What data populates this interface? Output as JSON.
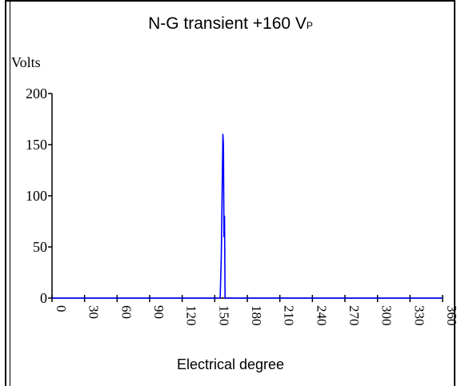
{
  "chart_data": {
    "type": "line",
    "title": "N-G transient +160 V",
    "title_subscript": "P",
    "xlabel": "Electrical degree",
    "ylabel": "Volts",
    "xlim": [
      0,
      360
    ],
    "ylim": [
      0,
      200
    ],
    "xticks": [
      "0",
      "30",
      "60",
      "90",
      "120",
      "150",
      "180",
      "210",
      "240",
      "270",
      "300",
      "330",
      "360"
    ],
    "yticks": [
      "0",
      "50",
      "100",
      "150",
      "200"
    ],
    "grid": false,
    "series": [
      {
        "color": "#0000ff",
        "x": [
          0,
          155,
          156,
          157,
          157.5,
          158,
          158.5,
          159,
          159.5,
          160,
          161,
          360
        ],
        "y": [
          0,
          0,
          40,
          120,
          160,
          150,
          60,
          80,
          0,
          0,
          0,
          0
        ]
      }
    ]
  }
}
